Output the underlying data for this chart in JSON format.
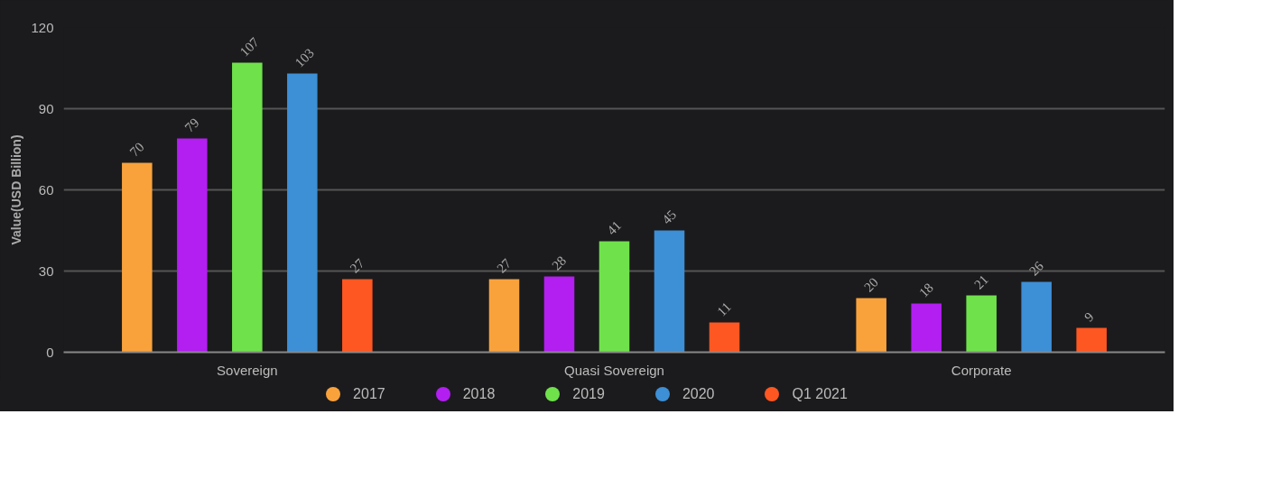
{
  "chart_data": {
    "type": "bar",
    "ylabel": "Value(USD Billion)",
    "categories": [
      "Sovereign",
      "Quasi Sovereign",
      "Corporate"
    ],
    "series": [
      {
        "name": "2017",
        "color": "#f9a23c",
        "values": [
          70,
          27,
          20
        ]
      },
      {
        "name": "2018",
        "color": "#b21ff0",
        "values": [
          79,
          28,
          18
        ]
      },
      {
        "name": "2019",
        "color": "#6fe24b",
        "values": [
          107,
          41,
          21
        ]
      },
      {
        "name": "2020",
        "color": "#3d8fd6",
        "values": [
          103,
          45,
          26
        ]
      },
      {
        "name": "Q1 2021",
        "color": "#ff5722",
        "values": [
          27,
          11,
          9
        ]
      }
    ],
    "ylim": [
      0,
      120
    ],
    "yticks": [
      0,
      30,
      60,
      90,
      120
    ],
    "grid": "y",
    "legend": "bottom",
    "data_labels": true
  }
}
